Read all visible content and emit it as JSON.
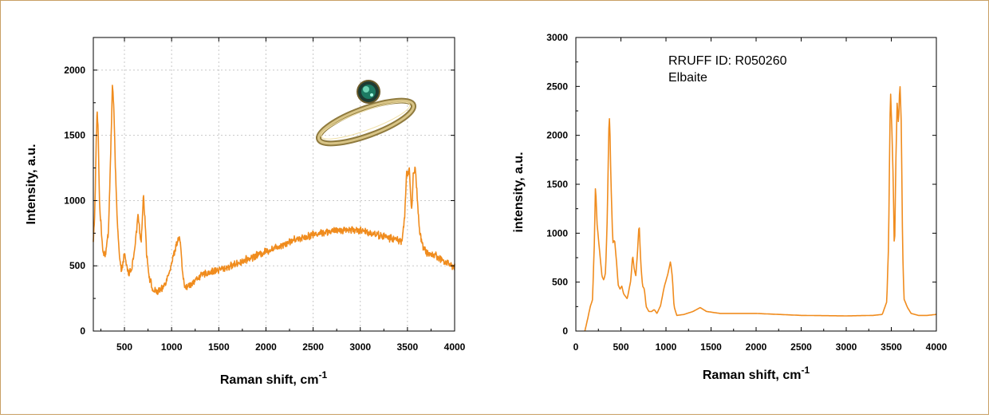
{
  "frame_color": "#c8a064",
  "series_color": "#f08c1e",
  "grid_color": "#c8c8c8",
  "chart_data": [
    {
      "type": "line",
      "name": "left-spectrum",
      "xlabel": "Raman shift, cm",
      "xlabel_sup": "-1",
      "ylabel": "Intensity, a.u.",
      "xlim": [
        170,
        4000
      ],
      "ylim": [
        0,
        2250
      ],
      "xticks": [
        500,
        1000,
        1500,
        2000,
        2500,
        3000,
        3500,
        4000
      ],
      "yticks": [
        0,
        500,
        1000,
        1500,
        2000
      ],
      "grid": true,
      "inset_image": "gold-ring-with-green-gem",
      "series": [
        {
          "noise": 22,
          "points": [
            [
              170,
              680
            ],
            [
              185,
              900
            ],
            [
              200,
              1420
            ],
            [
              210,
              1690
            ],
            [
              222,
              1510
            ],
            [
              235,
              1000
            ],
            [
              255,
              760
            ],
            [
              275,
              600
            ],
            [
              300,
              590
            ],
            [
              330,
              760
            ],
            [
              355,
              1380
            ],
            [
              372,
              1880
            ],
            [
              388,
              1720
            ],
            [
              405,
              1220
            ],
            [
              425,
              820
            ],
            [
              445,
              590
            ],
            [
              460,
              470
            ],
            [
              480,
              500
            ],
            [
              500,
              590
            ],
            [
              520,
              510
            ],
            [
              545,
              440
            ],
            [
              575,
              480
            ],
            [
              605,
              600
            ],
            [
              630,
              780
            ],
            [
              645,
              900
            ],
            [
              660,
              760
            ],
            [
              680,
              700
            ],
            [
              700,
              1040
            ],
            [
              715,
              900
            ],
            [
              735,
              600
            ],
            [
              760,
              430
            ],
            [
              800,
              310
            ],
            [
              850,
              300
            ],
            [
              900,
              320
            ],
            [
              950,
              400
            ],
            [
              1000,
              520
            ],
            [
              1050,
              660
            ],
            [
              1080,
              720
            ],
            [
              1100,
              620
            ],
            [
              1120,
              400
            ],
            [
              1150,
              330
            ],
            [
              1200,
              360
            ],
            [
              1300,
              420
            ],
            [
              1400,
              450
            ],
            [
              1500,
              470
            ],
            [
              1600,
              490
            ],
            [
              1700,
              520
            ],
            [
              1800,
              550
            ],
            [
              1900,
              580
            ],
            [
              2000,
              610
            ],
            [
              2100,
              640
            ],
            [
              2200,
              670
            ],
            [
              2300,
              700
            ],
            [
              2400,
              720
            ],
            [
              2500,
              740
            ],
            [
              2600,
              755
            ],
            [
              2700,
              765
            ],
            [
              2800,
              775
            ],
            [
              2900,
              778
            ],
            [
              3000,
              770
            ],
            [
              3100,
              755
            ],
            [
              3200,
              735
            ],
            [
              3300,
              715
            ],
            [
              3400,
              700
            ],
            [
              3440,
              690
            ],
            [
              3470,
              860
            ],
            [
              3490,
              1200
            ],
            [
              3520,
              1230
            ],
            [
              3545,
              900
            ],
            [
              3560,
              1200
            ],
            [
              3585,
              1240
            ],
            [
              3605,
              1010
            ],
            [
              3630,
              760
            ],
            [
              3660,
              650
            ],
            [
              3700,
              600
            ],
            [
              3800,
              580
            ],
            [
              3900,
              530
            ],
            [
              4000,
              490
            ]
          ]
        }
      ]
    },
    {
      "type": "line",
      "name": "right-spectrum",
      "xlabel": "Raman shift, cm",
      "xlabel_sup": "-1",
      "ylabel": "intensity, a.u.",
      "xlim": [
        0,
        4000
      ],
      "ylim": [
        0,
        3000
      ],
      "xticks": [
        0,
        500,
        1000,
        1500,
        2000,
        2500,
        3000,
        3500,
        4000
      ],
      "yticks": [
        0,
        500,
        1000,
        1500,
        2000,
        2500,
        3000
      ],
      "grid": false,
      "annotation": [
        "RRUFF ID: R050260",
        "Elbaite"
      ],
      "series": [
        {
          "noise": 0,
          "points": [
            [
              100,
              0
            ],
            [
              130,
              120
            ],
            [
              160,
              250
            ],
            [
              185,
              320
            ],
            [
              205,
              900
            ],
            [
              218,
              1500
            ],
            [
              235,
              1100
            ],
            [
              260,
              850
            ],
            [
              290,
              560
            ],
            [
              310,
              520
            ],
            [
              330,
              600
            ],
            [
              350,
              1200
            ],
            [
              365,
              2050
            ],
            [
              375,
              2200
            ],
            [
              390,
              1500
            ],
            [
              410,
              900
            ],
            [
              430,
              930
            ],
            [
              450,
              720
            ],
            [
              470,
              470
            ],
            [
              490,
              430
            ],
            [
              510,
              460
            ],
            [
              530,
              380
            ],
            [
              570,
              330
            ],
            [
              610,
              520
            ],
            [
              630,
              780
            ],
            [
              645,
              650
            ],
            [
              665,
              560
            ],
            [
              685,
              820
            ],
            [
              702,
              1110
            ],
            [
              720,
              700
            ],
            [
              740,
              460
            ],
            [
              760,
              430
            ],
            [
              780,
              250
            ],
            [
              810,
              200
            ],
            [
              840,
              200
            ],
            [
              870,
              220
            ],
            [
              900,
              180
            ],
            [
              940,
              260
            ],
            [
              980,
              450
            ],
            [
              1020,
              580
            ],
            [
              1050,
              710
            ],
            [
              1070,
              560
            ],
            [
              1090,
              250
            ],
            [
              1120,
              160
            ],
            [
              1200,
              170
            ],
            [
              1300,
              200
            ],
            [
              1380,
              240
            ],
            [
              1450,
              200
            ],
            [
              1600,
              180
            ],
            [
              2000,
              180
            ],
            [
              2500,
              160
            ],
            [
              3000,
              155
            ],
            [
              3300,
              160
            ],
            [
              3400,
              170
            ],
            [
              3450,
              300
            ],
            [
              3470,
              900
            ],
            [
              3490,
              2500
            ],
            [
              3505,
              2100
            ],
            [
              3520,
              1600
            ],
            [
              3535,
              750
            ],
            [
              3550,
              1700
            ],
            [
              3565,
              2350
            ],
            [
              3580,
              2100
            ],
            [
              3595,
              2550
            ],
            [
              3610,
              2150
            ],
            [
              3625,
              900
            ],
            [
              3640,
              330
            ],
            [
              3680,
              240
            ],
            [
              3720,
              180
            ],
            [
              3800,
              160
            ],
            [
              3900,
              160
            ],
            [
              4000,
              170
            ]
          ]
        }
      ]
    }
  ]
}
